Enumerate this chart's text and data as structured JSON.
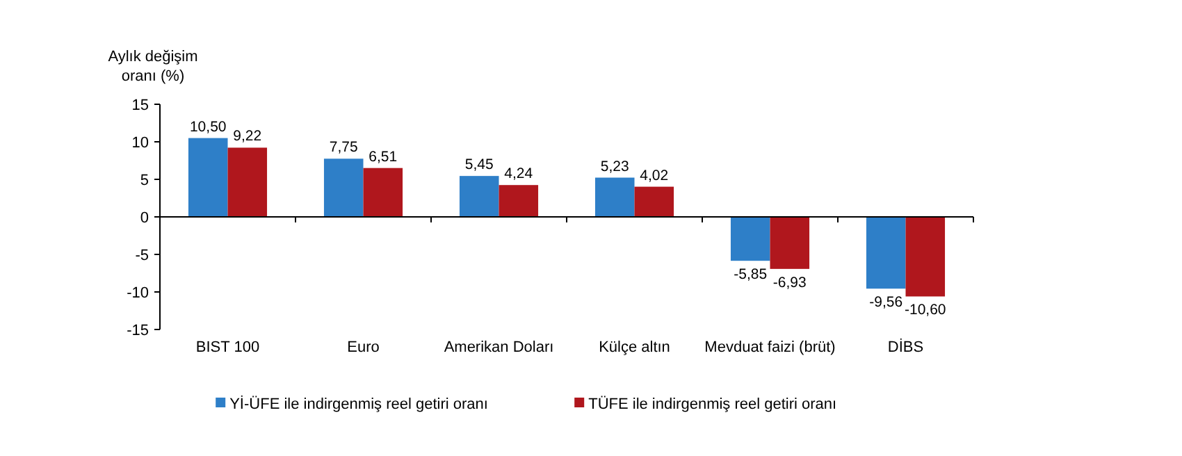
{
  "chart_data": {
    "type": "bar",
    "ylabel": "Aylık değişim oranı (%)",
    "categories": [
      "BIST 100",
      "Euro",
      "Amerikan Doları",
      "Külçe altın",
      "Mevduat faizi (brüt)",
      "DİBS"
    ],
    "series": [
      {
        "name": "Yİ-ÜFE ile indirgenmiş reel getiri oranı",
        "color": "#2e7fc8",
        "values": [
          10.5,
          7.75,
          5.45,
          5.23,
          -5.85,
          -9.56
        ],
        "value_labels": [
          "10,50",
          "7,75",
          "5,45",
          "5,23",
          "-5,85",
          "-9,56"
        ]
      },
      {
        "name": "TÜFE ile indirgenmiş reel getiri oranı",
        "color": "#b0171d",
        "values": [
          9.22,
          6.51,
          4.24,
          4.02,
          -6.93,
          -10.6
        ],
        "value_labels": [
          "9,22",
          "6,51",
          "4,24",
          "4,02",
          "-6,93",
          "-10,60"
        ]
      }
    ],
    "ylim": [
      -15,
      15
    ],
    "yticks": [
      -15,
      -10,
      -5,
      0,
      5,
      10,
      15
    ],
    "legend": "bottom"
  }
}
